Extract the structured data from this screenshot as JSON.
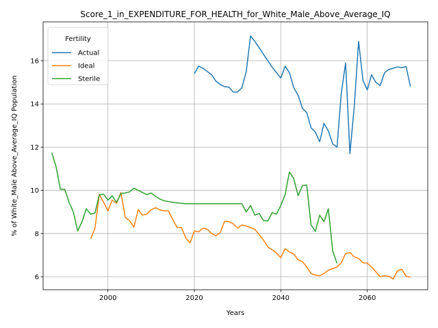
{
  "chart_data": {
    "type": "line",
    "title": "Score_1_in_EXPENDITURE_FOR_HEALTH_for_White_Male_Above_Average_IQ",
    "xlabel": "Years",
    "ylabel": "% of White_Male Above_Average_IQ Population",
    "xlim": [
      1985,
      2074
    ],
    "ylim": [
      5.4,
      17.8
    ],
    "x_ticks": [
      2000,
      2020,
      2040,
      2060
    ],
    "y_ticks": [
      6,
      8,
      10,
      12,
      14,
      16
    ],
    "grid": true,
    "legend": {
      "title": "Fertility",
      "placement": "top-left"
    },
    "series": [
      {
        "name": "Actual",
        "color": "#1f77b4",
        "points": [
          [
            2020,
            15.4
          ],
          [
            2021,
            15.75
          ],
          [
            2022,
            15.65
          ],
          [
            2023,
            15.5
          ],
          [
            2024,
            15.35
          ],
          [
            2025,
            15.05
          ],
          [
            2026,
            14.9
          ],
          [
            2027,
            14.8
          ],
          [
            2028,
            14.78
          ],
          [
            2029,
            14.55
          ],
          [
            2030,
            14.55
          ],
          [
            2031,
            14.75
          ],
          [
            2032,
            15.5
          ],
          [
            2033,
            17.15
          ],
          [
            2034,
            16.9
          ],
          [
            2035,
            16.6
          ],
          [
            2036,
            16.3
          ],
          [
            2037,
            16.0
          ],
          [
            2038,
            15.7
          ],
          [
            2039,
            15.45
          ],
          [
            2040,
            15.2
          ],
          [
            2041,
            15.75
          ],
          [
            2042,
            15.45
          ],
          [
            2043,
            14.75
          ],
          [
            2044,
            14.4
          ],
          [
            2045,
            13.8
          ],
          [
            2046,
            13.6
          ],
          [
            2047,
            12.9
          ],
          [
            2048,
            12.7
          ],
          [
            2049,
            12.25
          ],
          [
            2050,
            13.1
          ],
          [
            2051,
            12.75
          ],
          [
            2052,
            12.15
          ],
          [
            2053,
            12.0
          ],
          [
            2054,
            14.5
          ],
          [
            2055,
            15.9
          ],
          [
            2056,
            11.7
          ],
          [
            2057,
            13.9
          ],
          [
            2058,
            16.9
          ],
          [
            2059,
            15.1
          ],
          [
            2060,
            14.65
          ],
          [
            2061,
            15.35
          ],
          [
            2062,
            15.0
          ],
          [
            2063,
            14.85
          ],
          [
            2064,
            15.45
          ],
          [
            2065,
            15.6
          ],
          [
            2066,
            15.65
          ],
          [
            2067,
            15.72
          ],
          [
            2068,
            15.68
          ],
          [
            2069,
            15.73
          ],
          [
            2070,
            14.8
          ]
        ]
      },
      {
        "name": "Ideal",
        "color": "#ff7f0e",
        "points": [
          [
            1996,
            7.75
          ],
          [
            1997,
            8.25
          ],
          [
            1998,
            9.8
          ],
          [
            1999,
            9.45
          ],
          [
            2000,
            9.05
          ],
          [
            2001,
            9.55
          ],
          [
            2002,
            9.4
          ],
          [
            2003,
            9.9
          ],
          [
            2004,
            8.75
          ],
          [
            2005,
            8.6
          ],
          [
            2006,
            8.3
          ],
          [
            2007,
            9.1
          ],
          [
            2008,
            8.85
          ],
          [
            2009,
            8.9
          ],
          [
            2010,
            9.1
          ],
          [
            2011,
            9.2
          ],
          [
            2012,
            9.1
          ],
          [
            2013,
            9.05
          ],
          [
            2014,
            9.05
          ],
          [
            2015,
            8.65
          ],
          [
            2016,
            8.28
          ],
          [
            2017,
            8.28
          ],
          [
            2018,
            7.8
          ],
          [
            2019,
            7.57
          ],
          [
            2020,
            8.12
          ],
          [
            2021,
            8.08
          ],
          [
            2022,
            8.25
          ],
          [
            2023,
            8.2
          ],
          [
            2024,
            8.0
          ],
          [
            2025,
            7.9
          ],
          [
            2026,
            8.05
          ],
          [
            2027,
            8.57
          ],
          [
            2028,
            8.55
          ],
          [
            2029,
            8.45
          ],
          [
            2030,
            8.25
          ],
          [
            2031,
            8.4
          ],
          [
            2032,
            8.35
          ],
          [
            2033,
            8.28
          ],
          [
            2034,
            8.2
          ],
          [
            2035,
            7.95
          ],
          [
            2036,
            7.7
          ],
          [
            2037,
            7.38
          ],
          [
            2038,
            7.25
          ],
          [
            2039,
            7.1
          ],
          [
            2040,
            6.88
          ],
          [
            2041,
            7.3
          ],
          [
            2042,
            7.15
          ],
          [
            2043,
            7.05
          ],
          [
            2044,
            6.78
          ],
          [
            2045,
            6.7
          ],
          [
            2046,
            6.45
          ],
          [
            2047,
            6.15
          ],
          [
            2048,
            6.08
          ],
          [
            2049,
            6.05
          ],
          [
            2050,
            6.15
          ],
          [
            2051,
            6.3
          ],
          [
            2052,
            6.38
          ],
          [
            2053,
            6.45
          ],
          [
            2054,
            6.65
          ],
          [
            2055,
            7.08
          ],
          [
            2056,
            7.12
          ],
          [
            2057,
            6.92
          ],
          [
            2058,
            6.85
          ],
          [
            2059,
            6.65
          ],
          [
            2060,
            6.63
          ],
          [
            2061,
            6.45
          ],
          [
            2062,
            6.23
          ],
          [
            2063,
            6.0
          ],
          [
            2064,
            6.05
          ],
          [
            2065,
            6.02
          ],
          [
            2066,
            5.9
          ],
          [
            2067,
            6.27
          ],
          [
            2068,
            6.35
          ],
          [
            2069,
            6.02
          ],
          [
            2070,
            5.99
          ]
        ]
      },
      {
        "name": "Sterile",
        "color": "#2ca02c",
        "points": [
          [
            1987,
            11.75
          ],
          [
            1988,
            11.1
          ],
          [
            1989,
            10.05
          ],
          [
            1990,
            10.05
          ],
          [
            1991,
            9.45
          ],
          [
            1992,
            9.0
          ],
          [
            1993,
            8.12
          ],
          [
            1994,
            8.55
          ],
          [
            1995,
            9.15
          ],
          [
            1996,
            8.9
          ],
          [
            1997,
            8.95
          ],
          [
            1998,
            9.8
          ],
          [
            1999,
            9.82
          ],
          [
            2000,
            9.55
          ],
          [
            2001,
            9.75
          ],
          [
            2002,
            9.45
          ],
          [
            2003,
            9.85
          ],
          [
            2004,
            9.88
          ],
          [
            2005,
            9.93
          ],
          [
            2006,
            10.1
          ],
          [
            2007,
            10.0
          ],
          [
            2008,
            9.9
          ],
          [
            2009,
            9.8
          ],
          [
            2010,
            9.88
          ],
          [
            2011,
            9.72
          ],
          [
            2012,
            9.6
          ],
          [
            2013,
            9.52
          ],
          [
            2014,
            9.48
          ],
          [
            2015,
            9.45
          ],
          [
            2016,
            9.42
          ],
          [
            2017,
            9.4
          ],
          [
            2018,
            9.38
          ],
          [
            2019,
            9.38
          ],
          [
            2020,
            9.38
          ],
          [
            2021,
            9.38
          ],
          [
            2022,
            9.38
          ],
          [
            2023,
            9.38
          ],
          [
            2024,
            9.38
          ],
          [
            2025,
            9.38
          ],
          [
            2026,
            9.38
          ],
          [
            2027,
            9.38
          ],
          [
            2028,
            9.38
          ],
          [
            2029,
            9.38
          ],
          [
            2030,
            9.38
          ],
          [
            2031,
            9.38
          ],
          [
            2032,
            9.0
          ],
          [
            2033,
            9.3
          ],
          [
            2034,
            8.85
          ],
          [
            2035,
            8.93
          ],
          [
            2036,
            8.6
          ],
          [
            2037,
            8.58
          ],
          [
            2038,
            8.97
          ],
          [
            2039,
            8.9
          ],
          [
            2040,
            9.3
          ],
          [
            2041,
            9.8
          ],
          [
            2042,
            10.85
          ],
          [
            2043,
            10.55
          ],
          [
            2044,
            9.75
          ],
          [
            2045,
            10.22
          ],
          [
            2046,
            10.25
          ],
          [
            2047,
            8.4
          ],
          [
            2048,
            8.1
          ],
          [
            2049,
            8.85
          ],
          [
            2050,
            8.55
          ],
          [
            2051,
            9.15
          ],
          [
            2052,
            7.2
          ],
          [
            2053,
            6.62
          ]
        ]
      }
    ]
  }
}
